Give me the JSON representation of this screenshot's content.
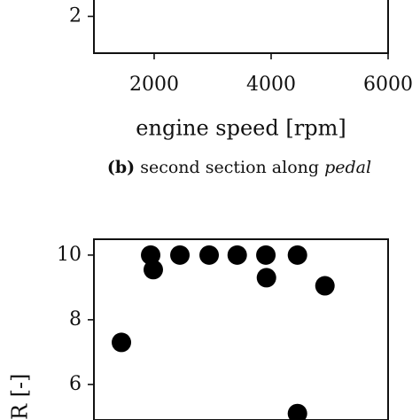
{
  "chart_data": [
    {
      "type": "scatter",
      "x": [],
      "values": [],
      "xlim": [
        970,
        6000
      ],
      "xticks": [
        2000,
        4000,
        6000
      ],
      "ylim": [
        0.58,
        4
      ],
      "yticks": [
        2
      ],
      "xlabel": "engine speed [rpm]",
      "caption": {
        "label": "(b)",
        "text": "second section along",
        "emphasis": "pedal"
      }
    },
    {
      "type": "scatter",
      "x": [
        1440,
        1940,
        1985,
        2440,
        2940,
        3420,
        3910,
        3920,
        4450,
        4920,
        4450
      ],
      "values": [
        7.3,
        10,
        9.55,
        10,
        10,
        10,
        10,
        9.3,
        10,
        9.05,
        5.1
      ],
      "color": "#000000",
      "xlim": [
        970,
        6000
      ],
      "ylim": [
        4.9,
        10.49
      ],
      "yticks": [
        6,
        8,
        10
      ],
      "ylabel": "R [-]"
    }
  ]
}
